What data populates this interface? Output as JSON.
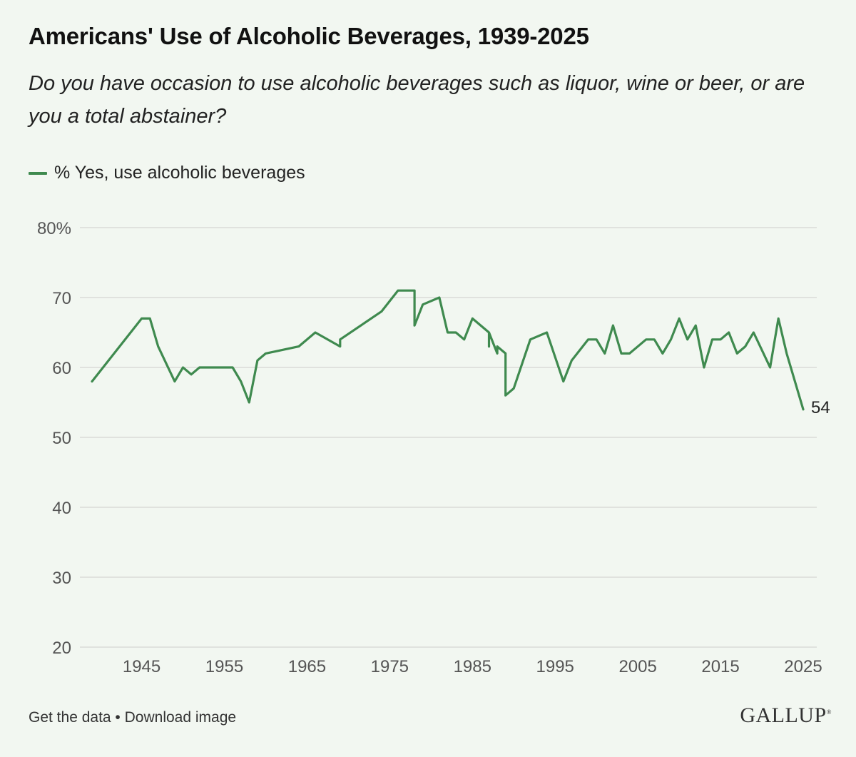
{
  "title": "Americans' Use of Alcoholic Beverages, 1939-2025",
  "subtitle": "Do you have occasion to use alcoholic beverages such as liquor, wine or beer, or are you a total abstainer?",
  "footer": {
    "get_data": "Get the data",
    "separator": " • ",
    "download": "Download image"
  },
  "logo": {
    "text": "GALLUP",
    "mark": "®"
  },
  "colors": {
    "line": "#3f8a4f",
    "grid": "#d9dcd8",
    "background": "#f2f7f1"
  },
  "chart_data": {
    "type": "line",
    "xlim": [
      1939,
      2025
    ],
    "ylim": [
      20,
      80
    ],
    "y_ticks": [
      "80%",
      "70",
      "60",
      "50",
      "40",
      "30",
      "20"
    ],
    "x_ticks": [
      "1945",
      "1955",
      "1965",
      "1975",
      "1985",
      "1995",
      "2005",
      "2015",
      "2025"
    ],
    "end_label": "54",
    "grid": "horizontal",
    "legend_position": "top-left",
    "series": [
      {
        "name": "% Yes, use alcoholic beverages",
        "points": [
          [
            1939,
            58
          ],
          [
            1945,
            67
          ],
          [
            1946,
            67
          ],
          [
            1947,
            63
          ],
          [
            1949,
            58
          ],
          [
            1950,
            60
          ],
          [
            1951,
            59
          ],
          [
            1952,
            60
          ],
          [
            1956,
            60
          ],
          [
            1957,
            58
          ],
          [
            1958,
            55
          ],
          [
            1959,
            61
          ],
          [
            1960,
            62
          ],
          [
            1964,
            63
          ],
          [
            1966,
            65
          ],
          [
            1969,
            63
          ],
          [
            1969,
            64
          ],
          [
            1974,
            68
          ],
          [
            1976,
            71
          ],
          [
            1978,
            71
          ],
          [
            1978,
            66
          ],
          [
            1979,
            69
          ],
          [
            1981,
            70
          ],
          [
            1982,
            65
          ],
          [
            1983,
            65
          ],
          [
            1984,
            64
          ],
          [
            1985,
            67
          ],
          [
            1987,
            65
          ],
          [
            1987,
            63
          ],
          [
            1987,
            65
          ],
          [
            1988,
            62
          ],
          [
            1988,
            63
          ],
          [
            1989,
            62
          ],
          [
            1989,
            56
          ],
          [
            1990,
            57
          ],
          [
            1992,
            64
          ],
          [
            1994,
            65
          ],
          [
            1996,
            58
          ],
          [
            1997,
            61
          ],
          [
            1999,
            64
          ],
          [
            2000,
            64
          ],
          [
            2001,
            62
          ],
          [
            2002,
            66
          ],
          [
            2003,
            62
          ],
          [
            2004,
            62
          ],
          [
            2006,
            64
          ],
          [
            2007,
            64
          ],
          [
            2008,
            62
          ],
          [
            2009,
            64
          ],
          [
            2010,
            67
          ],
          [
            2011,
            64
          ],
          [
            2012,
            66
          ],
          [
            2013,
            60
          ],
          [
            2014,
            64
          ],
          [
            2015,
            64
          ],
          [
            2016,
            65
          ],
          [
            2017,
            62
          ],
          [
            2018,
            63
          ],
          [
            2019,
            65
          ],
          [
            2021,
            60
          ],
          [
            2022,
            67
          ],
          [
            2023,
            62
          ],
          [
            2025,
            54
          ]
        ]
      }
    ]
  }
}
